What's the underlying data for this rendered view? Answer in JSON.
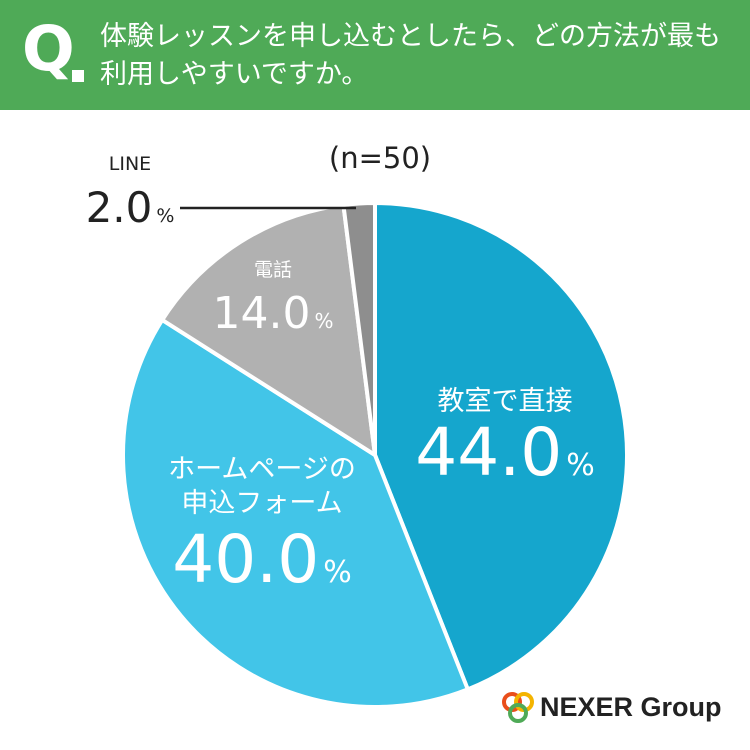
{
  "header": {
    "q_label": "Q",
    "question_line1": "体験レッスンを申し込むとしたら、どの方法が最も",
    "question_line2": "利用しやすいですか。"
  },
  "chart_data": {
    "type": "pie",
    "sample_note": "(n=50)",
    "percent_sign": "%",
    "start_angle_deg": 0,
    "direction": "clockwise",
    "slices": [
      {
        "label_lines": [
          "教室で直接"
        ],
        "value": 44.0,
        "value_text": "44.0",
        "color": "#15a6cd",
        "text_color": "#ffffff"
      },
      {
        "label_lines": [
          "ホームページの",
          "申込フォーム"
        ],
        "value": 40.0,
        "value_text": "40.0",
        "color": "#42c5e8",
        "text_color": "#ffffff"
      },
      {
        "label_lines": [
          "電話"
        ],
        "value": 14.0,
        "value_text": "14.0",
        "color": "#b1b1b1",
        "text_color": "#ffffff"
      },
      {
        "label_lines": [
          "LINE"
        ],
        "value": 2.0,
        "value_text": "2.0",
        "color": "#8e8e8e",
        "text_color": "#222222"
      }
    ]
  },
  "logo": {
    "text": "NEXER Group",
    "ring_colors": [
      "#e94e1b",
      "#f4b400",
      "#4faa57"
    ]
  }
}
